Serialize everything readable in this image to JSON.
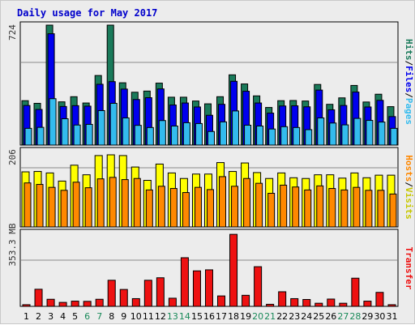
{
  "title": "Daily usage for May 2017",
  "colors": {
    "title": "#0000cc",
    "hits": "#1a7a5a",
    "files": "#0000ee",
    "pages": "#33bbee",
    "hosts": "#ff8800",
    "visits": "#ffff00",
    "transfer": "#ee1111",
    "weekend": "#1a8a5a",
    "weekday": "#000000"
  },
  "chart_data": [
    {
      "type": "bar",
      "panel": "hits",
      "y_tick_label": "724",
      "ylim": [
        0,
        724
      ],
      "categories": [
        "1",
        "2",
        "3",
        "4",
        "5",
        "6",
        "7",
        "8",
        "9",
        "10",
        "11",
        "12",
        "13",
        "14",
        "15",
        "16",
        "17",
        "18",
        "19",
        "20",
        "21",
        "22",
        "23",
        "24",
        "25",
        "26",
        "27",
        "28",
        "29",
        "30",
        "31"
      ],
      "weekend_days": [
        "6",
        "7",
        "13",
        "14",
        "20",
        "21",
        "27",
        "28"
      ],
      "side_label": {
        "hits": "Hits",
        "files": "Files",
        "pages": "Pages",
        "sep": "/"
      },
      "series": [
        {
          "name": "Hits",
          "values": [
            268,
            252,
            724,
            261,
            292,
            254,
            420,
            724,
            376,
            319,
            326,
            374,
            289,
            289,
            266,
            249,
            292,
            424,
            369,
            297,
            227,
            268,
            269,
            266,
            366,
            246,
            285,
            360,
            260,
            307,
            232
          ]
        },
        {
          "name": "Files",
          "values": [
            239,
            215,
            672,
            233,
            238,
            235,
            367,
            383,
            338,
            275,
            286,
            339,
            242,
            254,
            230,
            180,
            246,
            385,
            325,
            254,
            193,
            236,
            237,
            231,
            332,
            213,
            239,
            320,
            230,
            270,
            172
          ]
        },
        {
          "name": "Pages",
          "values": [
            101,
            107,
            280,
            159,
            121,
            125,
            208,
            252,
            164,
            119,
            106,
            148,
            115,
            135,
            130,
            82,
            140,
            206,
            120,
            115,
            97,
            111,
            106,
            93,
            164,
            133,
            122,
            161,
            149,
            139,
            101
          ]
        }
      ]
    },
    {
      "type": "bar",
      "panel": "visits",
      "y_tick_label": "206",
      "ylim": [
        0,
        206
      ],
      "side_label": {
        "hosts": "Hosts",
        "visits": "Visits",
        "sep": "/"
      },
      "series": [
        {
          "name": "Visits",
          "values": [
            149,
            150,
            146,
            124,
            167,
            141,
            193,
            195,
            193,
            162,
            126,
            170,
            146,
            131,
            143,
            143,
            174,
            150,
            173,
            147,
            131,
            146,
            133,
            131,
            141,
            141,
            132,
            146,
            133,
            140,
            140
          ]
        },
        {
          "name": "Hosts",
          "values": [
            119,
            115,
            107,
            99,
            121,
            106,
            130,
            134,
            128,
            131,
            100,
            110,
            104,
            93,
            107,
            101,
            136,
            110,
            131,
            118,
            91,
            113,
            108,
            100,
            111,
            104,
            100,
            107,
            99,
            99,
            89
          ]
        }
      ]
    },
    {
      "type": "bar",
      "panel": "transfer",
      "y_tick_label": "353.3 MB",
      "ylim": [
        0,
        353.3
      ],
      "side_label": "Transfer",
      "series": [
        {
          "name": "Transfer",
          "values": [
            8,
            82,
            34,
            19,
            25,
            24,
            34,
            125,
            81,
            37,
            125,
            137,
            39,
            233,
            170,
            175,
            50,
            345,
            53,
            190,
            10,
            70,
            37,
            33,
            15,
            35,
            15,
            135,
            25,
            67,
            8
          ]
        }
      ]
    }
  ]
}
